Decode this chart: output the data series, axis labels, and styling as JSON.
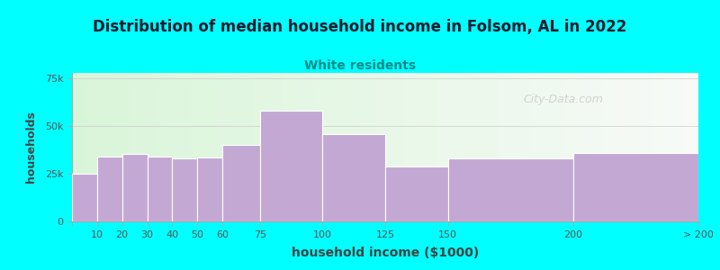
{
  "title": "Distribution of median household income in Folsom, AL in 2022",
  "subtitle": "White residents",
  "xlabel": "household income ($1000)",
  "ylabel": "households",
  "background_color": "#00FFFF",
  "bar_color": "#C4A8D4",
  "bar_edge_color": "#ffffff",
  "title_color": "#1a1a2e",
  "subtitle_color": "#008B8B",
  "axis_label_color": "#444444",
  "tick_label_color": "#555555",
  "categories": [
    "10",
    "20",
    "30",
    "40",
    "50",
    "60",
    "75",
    "100",
    "125",
    "150",
    "200",
    "> 200"
  ],
  "values": [
    25000,
    34000,
    35500,
    34000,
    33000,
    33500,
    40000,
    58000,
    46000,
    29000,
    33000,
    36000
  ],
  "bar_lefts": [
    0,
    10,
    20,
    30,
    40,
    50,
    60,
    75,
    100,
    125,
    150,
    200
  ],
  "bar_rights": [
    10,
    20,
    30,
    40,
    50,
    60,
    75,
    100,
    125,
    150,
    200,
    250
  ],
  "tick_positions": [
    0,
    10,
    20,
    30,
    40,
    50,
    60,
    75,
    100,
    125,
    150,
    200,
    250
  ],
  "tick_labels": [
    "",
    "10",
    "20",
    "30",
    "40",
    "50",
    "60",
    "75",
    "100",
    "125",
    "150",
    "200",
    "> 200"
  ],
  "ylim": [
    0,
    78000
  ],
  "yticks": [
    0,
    25000,
    50000,
    75000
  ],
  "ytick_labels": [
    "0",
    "25k",
    "50k",
    "75k"
  ],
  "watermark": "City-Data.com",
  "figsize": [
    8.0,
    3.0
  ],
  "dpi": 100
}
